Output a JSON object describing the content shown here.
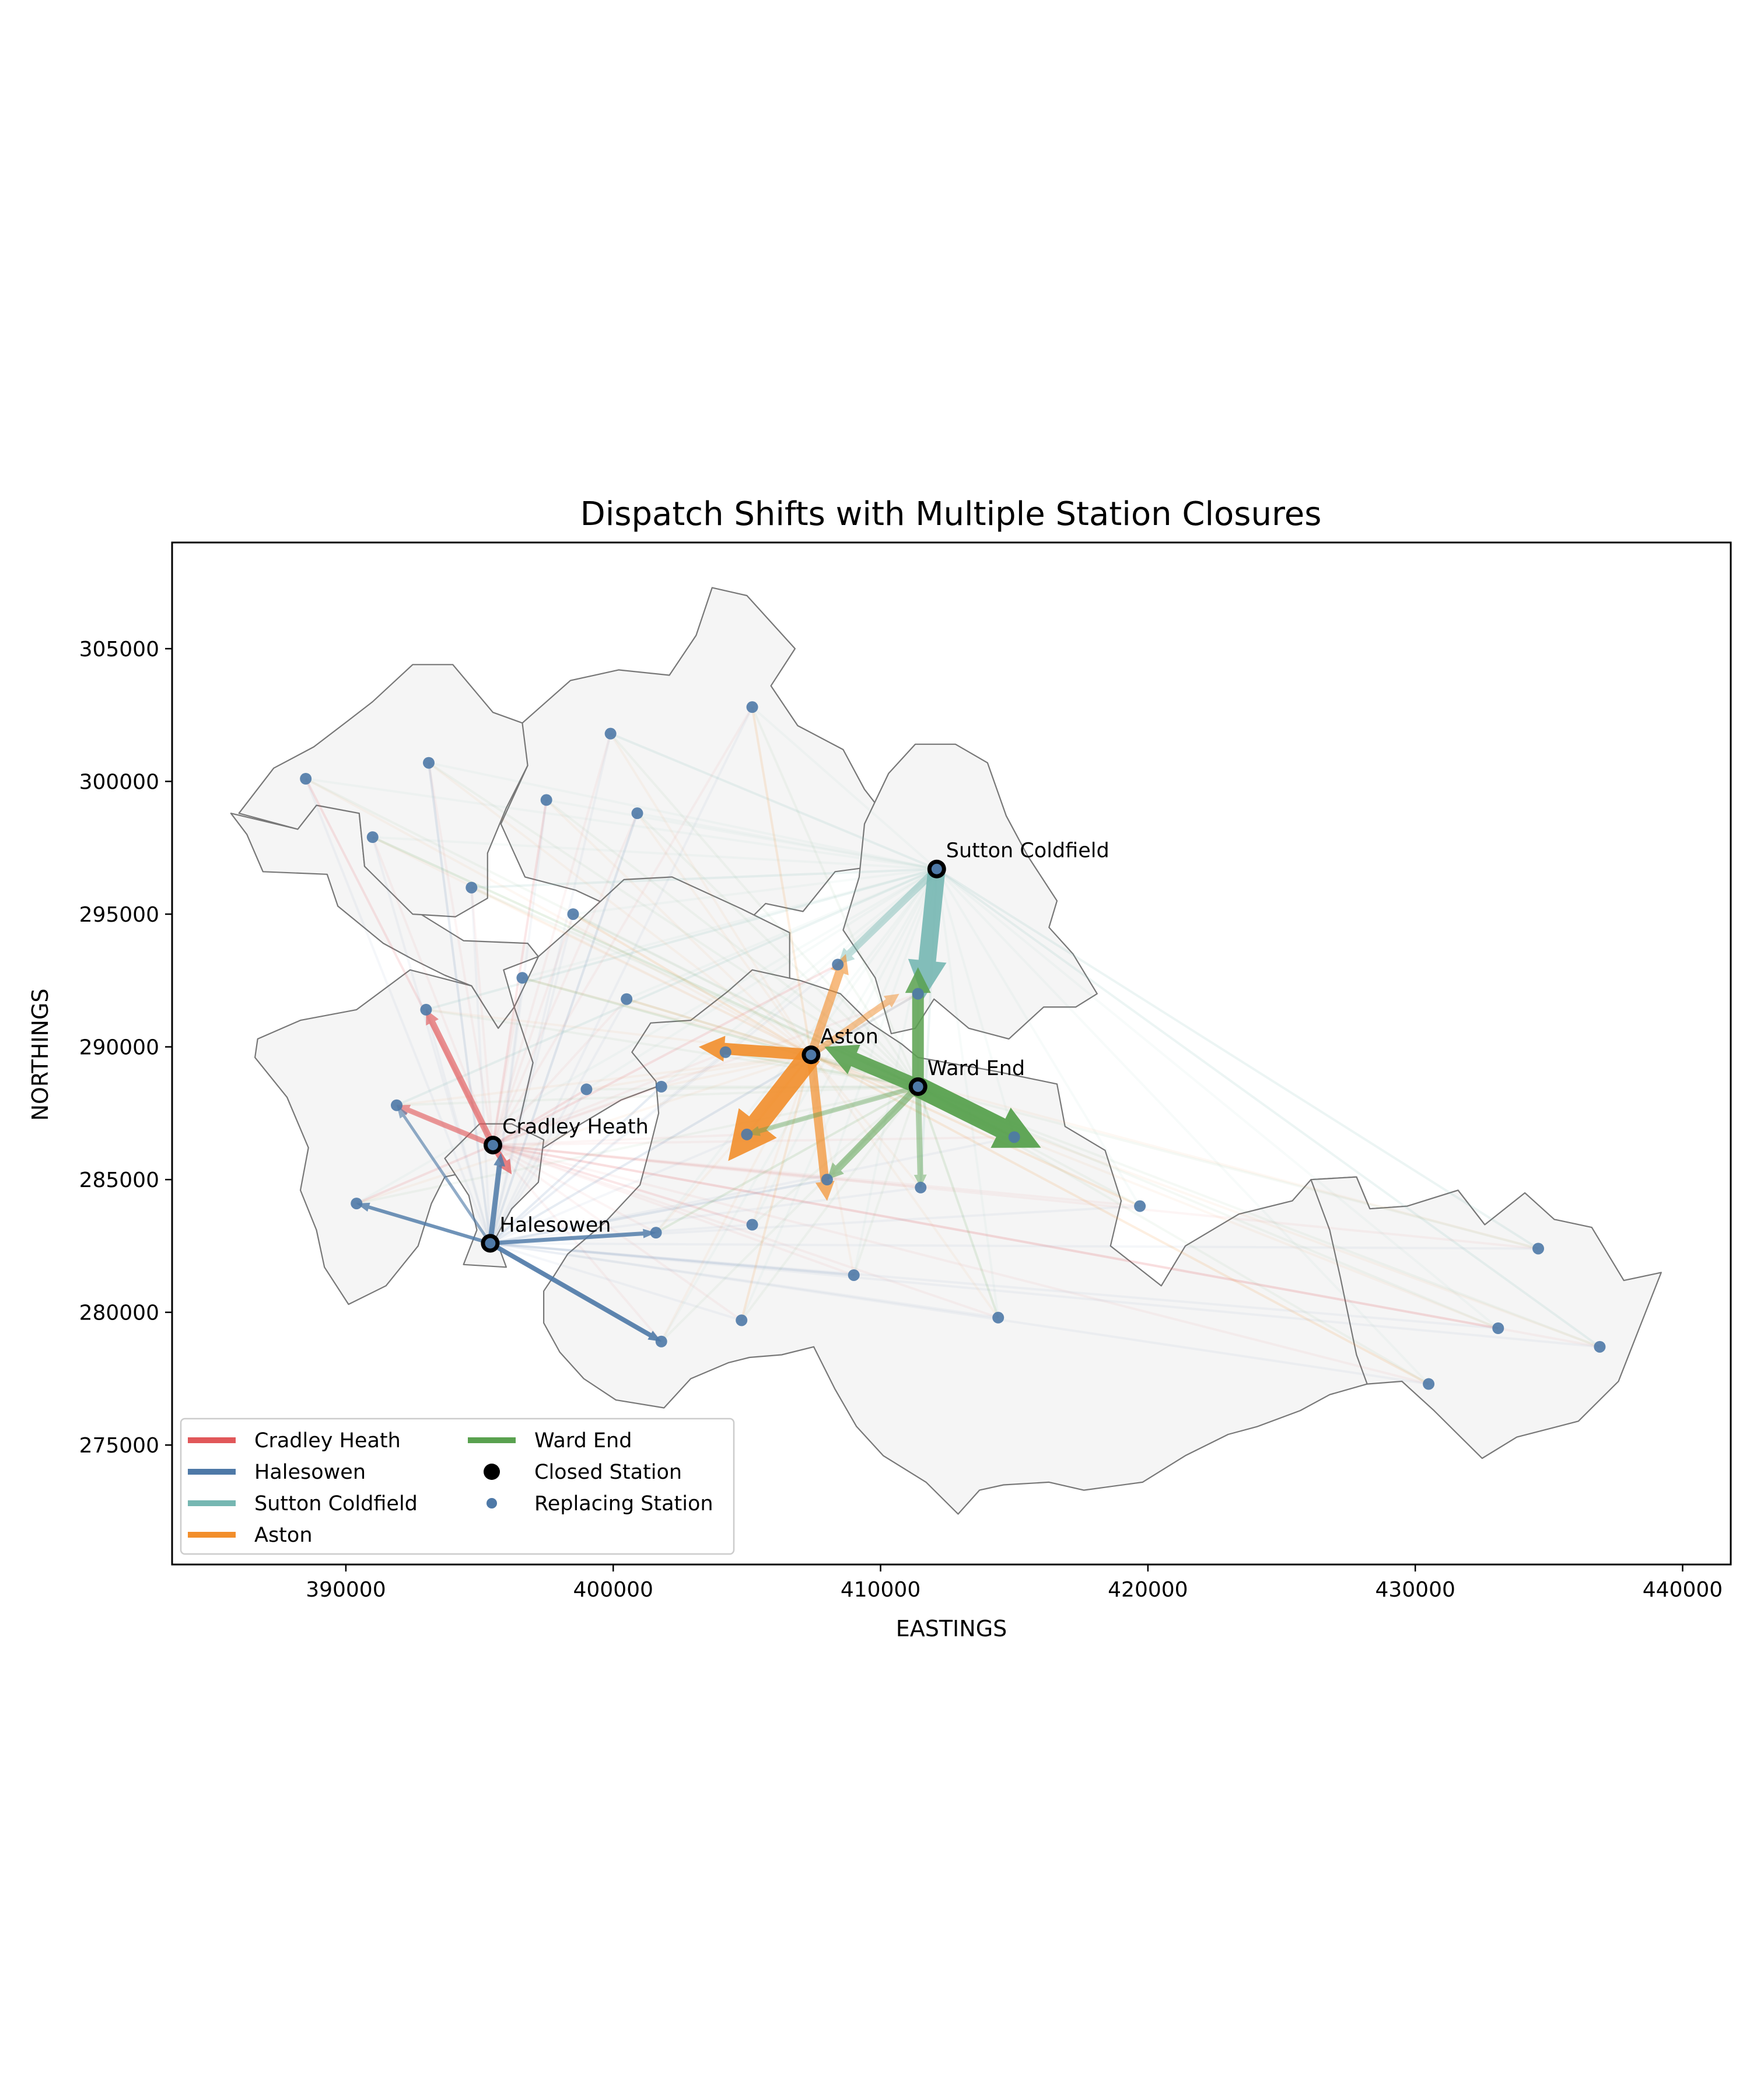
{
  "chart_data": {
    "type": "scatter",
    "title": "Dispatch Shifts with Multiple Station Closures",
    "xlabel": "EASTINGS",
    "ylabel": "NORTHINGS",
    "xlim": [
      383500,
      441800
    ],
    "ylim": [
      270500,
      309000
    ],
    "xticks": [
      390000,
      400000,
      410000,
      420000,
      430000,
      440000
    ],
    "xtick_labels": [
      "390000",
      "400000",
      "410000",
      "420000",
      "430000",
      "440000"
    ],
    "yticks": [
      275000,
      280000,
      285000,
      290000,
      295000,
      300000,
      305000
    ],
    "ytick_labels": [
      "275000",
      "280000",
      "285000",
      "290000",
      "295000",
      "300000",
      "305000"
    ],
    "grid": false,
    "legend_position": "lower-left",
    "colors": {
      "Cradley Heath": "#e15759",
      "Halesowen": "#4e79a7",
      "Sutton Coldfield": "#76b7b2",
      "Aston": "#f28e2b",
      "Ward End": "#59a14f",
      "closed_station": "#000000",
      "replacing_station": "#4e79a7",
      "boundary_fill": "#f5f5f5",
      "boundary_edge": "#777777"
    },
    "closed_stations": [
      {
        "name": "Cradley Heath",
        "x": 395500,
        "y": 286300
      },
      {
        "name": "Halesowen",
        "x": 395400,
        "y": 282600
      },
      {
        "name": "Sutton Coldfield",
        "x": 412100,
        "y": 296700
      },
      {
        "name": "Aston",
        "x": 407400,
        "y": 289700
      },
      {
        "name": "Ward End",
        "x": 411400,
        "y": 288500
      }
    ],
    "replacing_stations": [
      {
        "x": 388500,
        "y": 300100
      },
      {
        "x": 393100,
        "y": 300700
      },
      {
        "x": 399900,
        "y": 301800
      },
      {
        "x": 405200,
        "y": 302800
      },
      {
        "x": 391000,
        "y": 297900
      },
      {
        "x": 397500,
        "y": 299300
      },
      {
        "x": 400900,
        "y": 298800
      },
      {
        "x": 394700,
        "y": 296000
      },
      {
        "x": 398500,
        "y": 295000
      },
      {
        "x": 396600,
        "y": 292600
      },
      {
        "x": 408400,
        "y": 293100
      },
      {
        "x": 411400,
        "y": 292000
      },
      {
        "x": 393000,
        "y": 291400
      },
      {
        "x": 400500,
        "y": 291800
      },
      {
        "x": 404200,
        "y": 289800
      },
      {
        "x": 399000,
        "y": 288400
      },
      {
        "x": 401800,
        "y": 288500
      },
      {
        "x": 391900,
        "y": 287800
      },
      {
        "x": 405000,
        "y": 286700
      },
      {
        "x": 415000,
        "y": 286600
      },
      {
        "x": 390400,
        "y": 284100
      },
      {
        "x": 408000,
        "y": 285000
      },
      {
        "x": 411500,
        "y": 284700
      },
      {
        "x": 419700,
        "y": 284000
      },
      {
        "x": 401600,
        "y": 283000
      },
      {
        "x": 405200,
        "y": 283300
      },
      {
        "x": 409000,
        "y": 281400
      },
      {
        "x": 434600,
        "y": 282400
      },
      {
        "x": 404800,
        "y": 279700
      },
      {
        "x": 414400,
        "y": 279800
      },
      {
        "x": 433100,
        "y": 279400
      },
      {
        "x": 401800,
        "y": 278900
      },
      {
        "x": 436900,
        "y": 278700
      },
      {
        "x": 430500,
        "y": 277300
      }
    ],
    "major_flows": [
      {
        "series": "Cradley Heath",
        "to": [
          393000,
          291400
        ],
        "weight": 2.2,
        "opacity": 0.65
      },
      {
        "series": "Cradley Heath",
        "to": [
          391900,
          287800
        ],
        "weight": 1.8,
        "opacity": 0.6
      },
      {
        "series": "Cradley Heath",
        "to": [
          396200,
          285200
        ],
        "weight": 2.2,
        "opacity": 0.75
      },
      {
        "series": "Halesowen",
        "to": [
          390400,
          284100
        ],
        "weight": 1.2,
        "opacity": 0.8
      },
      {
        "series": "Halesowen",
        "to": [
          401600,
          283000
        ],
        "weight": 1.4,
        "opacity": 0.8
      },
      {
        "series": "Halesowen",
        "to": [
          401800,
          278900
        ],
        "weight": 1.6,
        "opacity": 0.9
      },
      {
        "series": "Halesowen",
        "to": [
          391900,
          287800
        ],
        "weight": 1.0,
        "opacity": 0.6
      },
      {
        "series": "Halesowen",
        "to": [
          395800,
          286000
        ],
        "weight": 1.8,
        "opacity": 0.85
      },
      {
        "series": "Sutton Coldfield",
        "to": [
          411600,
          291800
        ],
        "weight": 6.0,
        "opacity": 0.9
      },
      {
        "series": "Sutton Coldfield",
        "to": [
          408400,
          293100
        ],
        "weight": 2.5,
        "opacity": 0.45
      },
      {
        "series": "Aston",
        "to": [
          403200,
          290000
        ],
        "weight": 4.0,
        "opacity": 0.9
      },
      {
        "series": "Aston",
        "to": [
          404300,
          285700
        ],
        "weight": 7.5,
        "opacity": 0.9
      },
      {
        "series": "Aston",
        "to": [
          408700,
          293500
        ],
        "weight": 3.0,
        "opacity": 0.6
      },
      {
        "series": "Aston",
        "to": [
          408000,
          284200
        ],
        "weight": 3.0,
        "opacity": 0.7
      },
      {
        "series": "Aston",
        "to": [
          410700,
          292000
        ],
        "weight": 2.2,
        "opacity": 0.5
      },
      {
        "series": "Ward End",
        "to": [
          416000,
          286200
        ],
        "weight": 7.0,
        "opacity": 0.95
      },
      {
        "series": "Ward End",
        "to": [
          411400,
          293000
        ],
        "weight": 4.0,
        "opacity": 0.85
      },
      {
        "series": "Ward End",
        "to": [
          407900,
          290000
        ],
        "weight": 5.0,
        "opacity": 0.9
      },
      {
        "series": "Ward End",
        "to": [
          408000,
          285000
        ],
        "weight": 2.5,
        "opacity": 0.55
      },
      {
        "series": "Ward End",
        "to": [
          411500,
          284700
        ],
        "weight": 2.0,
        "opacity": 0.45
      },
      {
        "series": "Ward End",
        "to": [
          405000,
          286700
        ],
        "weight": 1.6,
        "opacity": 0.4
      }
    ],
    "legend": {
      "col1": [
        {
          "label": "Cradley Heath",
          "kind": "line",
          "color": "#e15759"
        },
        {
          "label": "Halesowen",
          "kind": "line",
          "color": "#4e79a7"
        },
        {
          "label": "Sutton Coldfield",
          "kind": "line",
          "color": "#76b7b2"
        },
        {
          "label": "Aston",
          "kind": "line",
          "color": "#f28e2b"
        }
      ],
      "col2": [
        {
          "label": "Ward End",
          "kind": "line",
          "color": "#59a14f"
        },
        {
          "label": "Closed Station",
          "kind": "marker",
          "color": "#000000"
        },
        {
          "label": "Replacing Station",
          "kind": "marker-small",
          "color": "#4e79a7"
        }
      ]
    }
  }
}
